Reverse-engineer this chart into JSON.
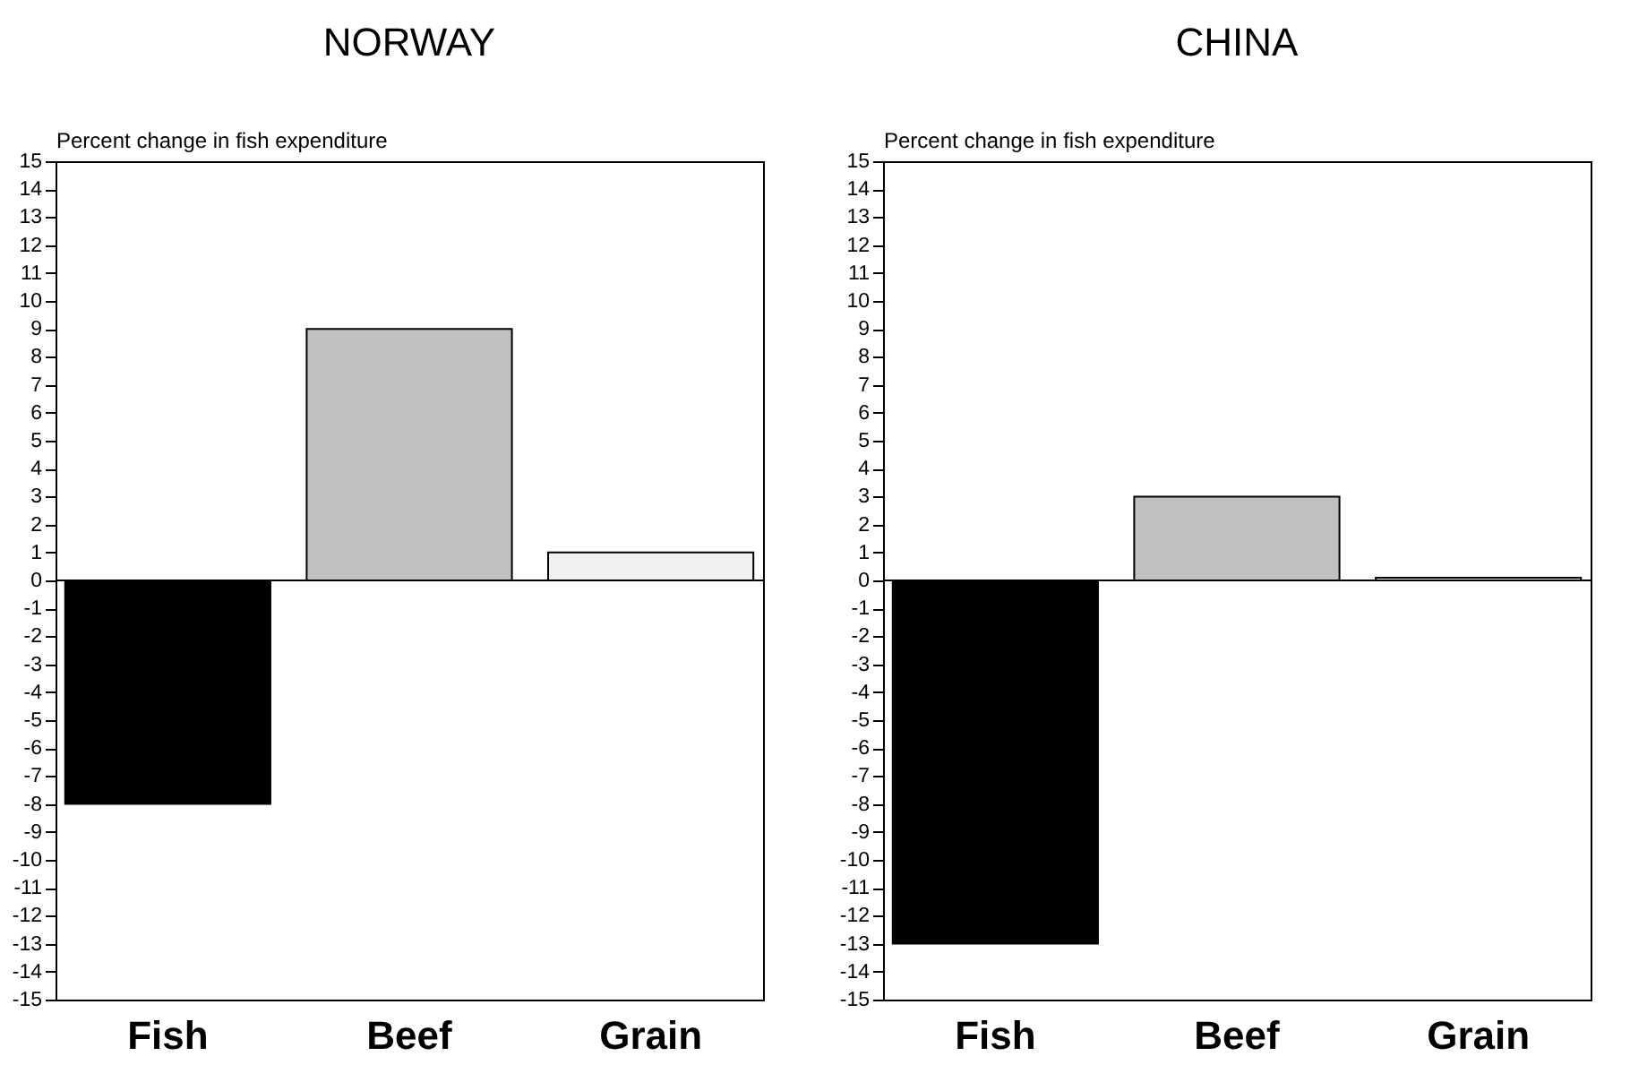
{
  "chart_data": [
    {
      "type": "bar",
      "title": "NORWAY",
      "ylabel": "Percent change in fish expenditure",
      "categories": [
        "Fish",
        "Beef",
        "Grain"
      ],
      "values": [
        -8,
        9,
        1
      ],
      "colors": [
        "#000000",
        "#c0c0c0",
        "#f0f0f0"
      ],
      "ylim": [
        -15,
        15
      ],
      "yticks": [
        -15,
        -14,
        -13,
        -12,
        -11,
        -10,
        -9,
        -8,
        -7,
        -6,
        -5,
        -4,
        -3,
        -2,
        -1,
        0,
        1,
        2,
        3,
        4,
        5,
        6,
        7,
        8,
        9,
        10,
        11,
        12,
        13,
        14,
        15
      ],
      "ref_lines": [
        {
          "axis": "y",
          "value": 0,
          "color": "#000000"
        }
      ]
    },
    {
      "type": "bar",
      "title": "CHINA",
      "ylabel": "Percent change in fish expenditure",
      "categories": [
        "Fish",
        "Beef",
        "Grain"
      ],
      "values": [
        -13,
        3,
        0.1
      ],
      "colors": [
        "#000000",
        "#c0c0c0",
        "#f0f0f0"
      ],
      "ylim": [
        -15,
        15
      ],
      "yticks": [
        -15,
        -14,
        -13,
        -12,
        -11,
        -10,
        -9,
        -8,
        -7,
        -6,
        -5,
        -4,
        -3,
        -2,
        -1,
        0,
        1,
        2,
        3,
        4,
        5,
        6,
        7,
        8,
        9,
        10,
        11,
        12,
        13,
        14,
        15
      ],
      "ref_lines": [
        {
          "axis": "y",
          "value": 0,
          "color": "#000000"
        }
      ]
    }
  ]
}
